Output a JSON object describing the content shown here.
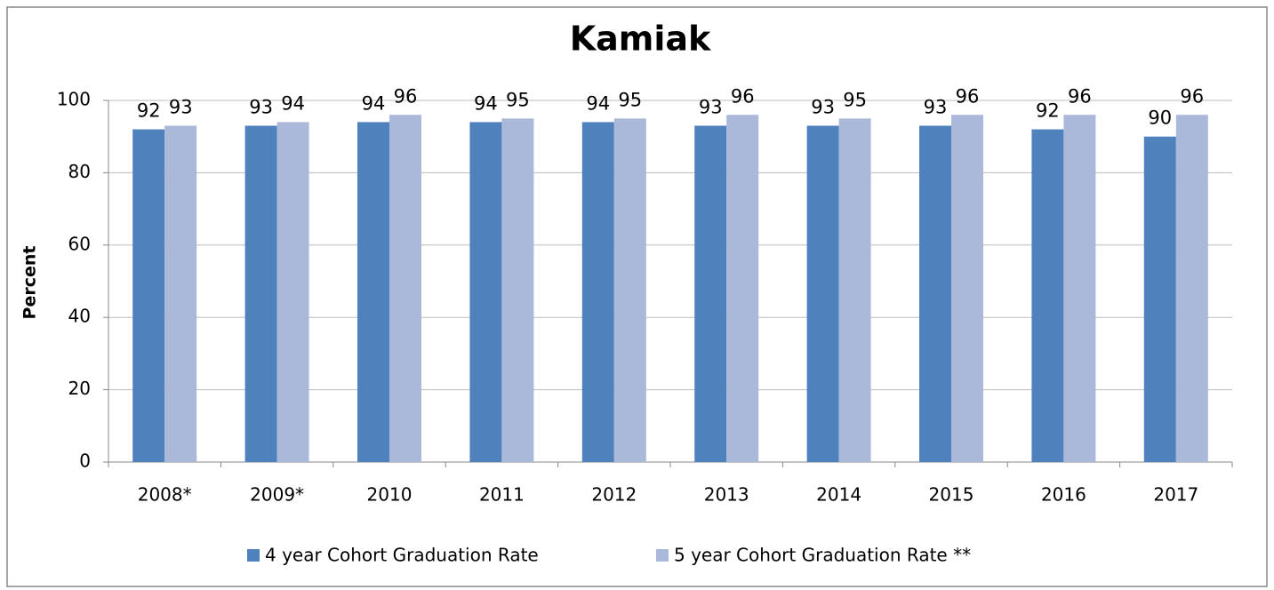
{
  "chart_data": {
    "type": "bar",
    "title": "Kamiak",
    "ylabel": "Percent",
    "categories": [
      "2008*",
      "2009*",
      "2010",
      "2011",
      "2012",
      "2013",
      "2014",
      "2015",
      "2016",
      "2017"
    ],
    "series": [
      {
        "name": "4 year Cohort Graduation Rate",
        "color": "#4f81bd",
        "values": [
          92,
          93,
          94,
          94,
          94,
          93,
          93,
          93,
          92,
          90
        ]
      },
      {
        "name": "5 year Cohort Graduation Rate **",
        "color": "#aab9da",
        "values": [
          93,
          94,
          96,
          95,
          95,
          96,
          95,
          96,
          96,
          96
        ]
      }
    ],
    "ylim": [
      0,
      100
    ],
    "yticks": [
      0,
      20,
      40,
      60,
      80,
      100
    ],
    "grid": true,
    "legend": "bottom"
  }
}
